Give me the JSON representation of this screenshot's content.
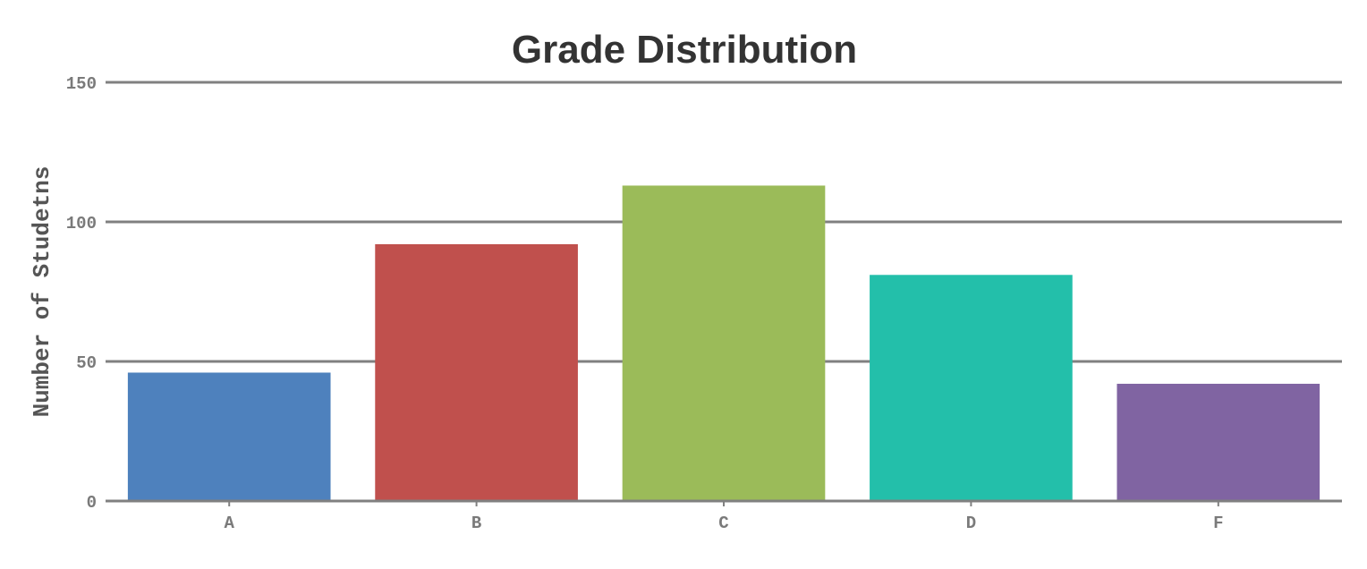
{
  "chart_data": {
    "type": "bar",
    "title": "Grade Distribution",
    "xlabel": "",
    "ylabel": "Number of Studetns",
    "categories": [
      "A",
      "B",
      "C",
      "D",
      "F"
    ],
    "values": [
      46,
      92,
      113,
      81,
      42
    ],
    "colors": [
      "#4e81bd",
      "#c0504d",
      "#9bbb59",
      "#23bfaa",
      "#8064a2"
    ],
    "ylim": [
      0,
      150
    ],
    "yticks": [
      0,
      50,
      100,
      150
    ],
    "grid": true,
    "legend": "none"
  }
}
